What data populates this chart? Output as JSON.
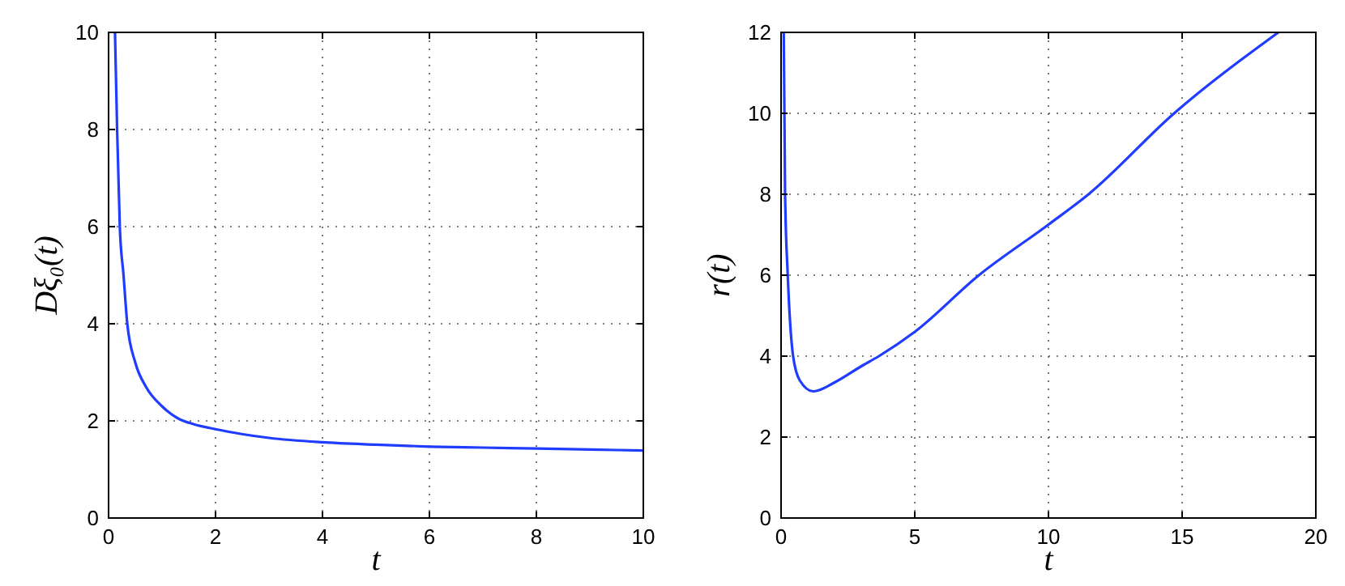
{
  "chart_data": [
    {
      "type": "line",
      "xlabel": "t",
      "ylabel": "Dξ₀(t)",
      "xlim": [
        0,
        10
      ],
      "ylim": [
        0,
        10
      ],
      "xticks": [
        0,
        2,
        4,
        6,
        8,
        10
      ],
      "yticks": [
        0,
        2,
        4,
        6,
        8,
        10
      ],
      "grid": true,
      "line_style": "solid",
      "marker": "none",
      "series": [
        {
          "color": "#1f3cff",
          "x": [
            0.12,
            0.16,
            0.21,
            0.28,
            0.35,
            0.5,
            0.7,
            1,
            1.3,
            1.6,
            2,
            3,
            4,
            5,
            6,
            7,
            8,
            9,
            10
          ],
          "values": [
            10,
            8,
            6,
            5,
            4,
            3.2,
            2.7,
            2.3,
            2.05,
            1.93,
            1.83,
            1.65,
            1.56,
            1.51,
            1.47,
            1.45,
            1.43,
            1.41,
            1.39
          ]
        }
      ]
    },
    {
      "type": "line",
      "xlabel": "t",
      "ylabel": "r(t)",
      "xlim": [
        0,
        20
      ],
      "ylim": [
        0,
        12
      ],
      "xticks": [
        0,
        5,
        10,
        15,
        20
      ],
      "yticks": [
        0,
        2,
        4,
        6,
        8,
        10,
        12
      ],
      "grid": true,
      "line_style": "solid",
      "marker": "none",
      "series": [
        {
          "color": "#1f3cff",
          "x": [
            0.1,
            0.15,
            0.25,
            0.45,
            0.7,
            1.2,
            2,
            3,
            3.66,
            5,
            7.4,
            10,
            11.5,
            14.7,
            18.6
          ],
          "values": [
            12,
            8,
            6,
            4,
            3.4,
            3.13,
            3.35,
            3.75,
            4,
            4.6,
            6,
            7.25,
            8,
            10,
            12
          ]
        }
      ]
    }
  ]
}
